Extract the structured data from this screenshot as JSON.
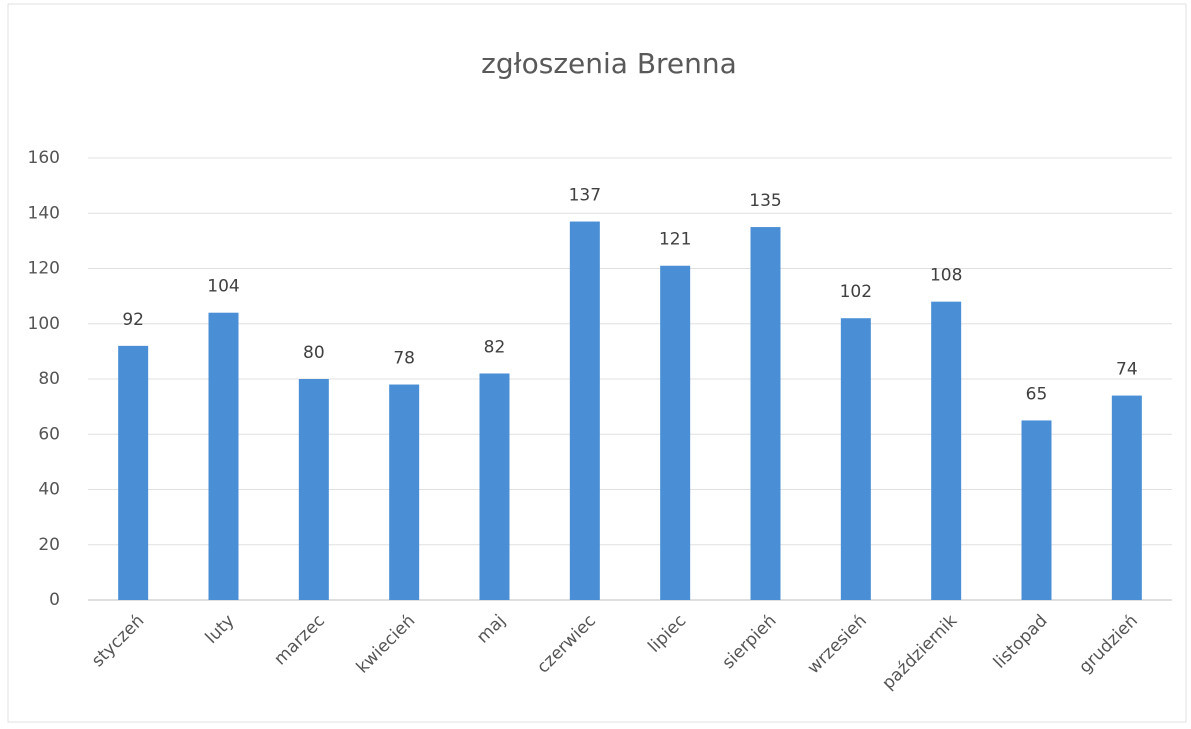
{
  "chart_data": {
    "type": "bar",
    "title": "zgłoszenia Brenna",
    "categories": [
      "styczeń",
      "luty",
      "marzec",
      "kwiecień",
      "maj",
      "czerwiec",
      "lipiec",
      "sierpień",
      "wrzesień",
      "październik",
      "listopad",
      "grudzień"
    ],
    "values": [
      92,
      104,
      80,
      78,
      82,
      137,
      121,
      135,
      102,
      108,
      65,
      74
    ],
    "color": "#4a8fd6",
    "ylim": [
      0,
      160
    ],
    "yticks": [
      0,
      20,
      40,
      60,
      80,
      100,
      120,
      140,
      160
    ],
    "grid": true
  }
}
